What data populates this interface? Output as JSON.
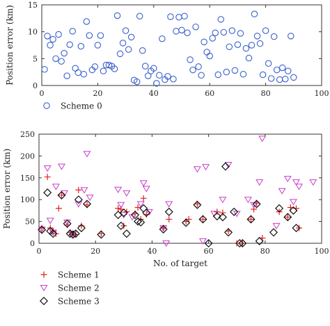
{
  "chart_data": [
    {
      "type": "scatter",
      "ylabel": "Position error (km)",
      "xlabel": "",
      "xlim": [
        0,
        100
      ],
      "ylim": [
        0,
        15
      ],
      "xticks": [
        0,
        20,
        40,
        60,
        80,
        100
      ],
      "yticks": [
        0,
        5,
        10,
        15
      ],
      "grid": false,
      "legend_placement": "bottom-left",
      "series": [
        {
          "name": "Scheme 0",
          "color": "#3a5fcd",
          "marker": "circle",
          "points": [
            [
              1,
              3.0
            ],
            [
              2,
              9.2
            ],
            [
              3,
              7.5
            ],
            [
              4,
              8.6
            ],
            [
              5,
              5.0
            ],
            [
              6,
              9.5
            ],
            [
              7,
              4.5
            ],
            [
              8,
              6.0
            ],
            [
              9,
              1.8
            ],
            [
              10,
              7.6
            ],
            [
              11,
              10.1
            ],
            [
              12,
              3.2
            ],
            [
              13,
              2.4
            ],
            [
              14,
              7.3
            ],
            [
              15,
              2.1
            ],
            [
              16,
              11.9
            ],
            [
              17,
              9.3
            ],
            [
              18,
              2.9
            ],
            [
              19,
              3.5
            ],
            [
              20,
              7.5
            ],
            [
              21,
              9.3
            ],
            [
              22,
              2.7
            ],
            [
              23,
              3.8
            ],
            [
              24,
              3.8
            ],
            [
              25,
              3.6
            ],
            [
              26,
              3.1
            ],
            [
              27,
              13.0
            ],
            [
              28,
              5.9
            ],
            [
              29,
              7.9
            ],
            [
              30,
              10.2
            ],
            [
              31,
              6.7
            ],
            [
              32,
              9.0
            ],
            [
              33,
              1.0
            ],
            [
              34,
              0.7
            ],
            [
              35,
              12.9
            ],
            [
              36,
              6.5
            ],
            [
              37,
              3.6
            ],
            [
              38,
              1.8
            ],
            [
              39,
              2.7
            ],
            [
              40,
              3.2
            ],
            [
              41,
              0.4
            ],
            [
              42,
              1.9
            ],
            [
              43,
              8.7
            ],
            [
              44,
              1.1
            ],
            [
              45,
              1.7
            ],
            [
              46,
              12.8
            ],
            [
              47,
              1.2
            ],
            [
              48,
              10.1
            ],
            [
              49,
              12.7
            ],
            [
              50,
              10.3
            ],
            [
              51,
              12.9
            ],
            [
              52,
              9.8
            ],
            [
              53,
              4.8
            ],
            [
              54,
              2.9
            ],
            [
              55,
              10.9
            ],
            [
              56,
              3.5
            ],
            [
              57,
              1.9
            ],
            [
              58,
              8.1
            ],
            [
              59,
              6.2
            ],
            [
              60,
              5.5
            ],
            [
              61,
              8.8
            ],
            [
              62,
              9.8
            ],
            [
              63,
              2.0
            ],
            [
              64,
              12.3
            ],
            [
              65,
              9.9
            ],
            [
              66,
              2.5
            ],
            [
              67,
              7.2
            ],
            [
              68,
              10.2
            ],
            [
              69,
              2.8
            ],
            [
              70,
              7.6
            ],
            [
              71,
              9.7
            ],
            [
              72,
              2.1
            ],
            [
              73,
              6.9
            ],
            [
              74,
              5.1
            ],
            [
              75,
              7.5
            ],
            [
              76,
              13.3
            ],
            [
              77,
              9.2
            ],
            [
              78,
              7.8
            ],
            [
              79,
              2.0
            ],
            [
              80,
              10.2
            ],
            [
              81,
              4.1
            ],
            [
              82,
              1.3
            ],
            [
              83,
              9.1
            ],
            [
              84,
              2.9
            ],
            [
              85,
              1.1
            ],
            [
              86,
              3.3
            ],
            [
              87,
              1.2
            ],
            [
              88,
              2.7
            ],
            [
              89,
              9.2
            ],
            [
              90,
              1.5
            ]
          ]
        }
      ]
    },
    {
      "type": "scatter",
      "ylabel": "Position error (km)",
      "xlabel": "No. of target",
      "xlim": [
        0,
        100
      ],
      "ylim": [
        0,
        250
      ],
      "xticks": [
        0,
        20,
        40,
        60,
        80,
        100
      ],
      "yticks": [
        0,
        50,
        100,
        150,
        200,
        250
      ],
      "grid": false,
      "legend_placement": "bottom-left",
      "series": [
        {
          "name": "Scheme 1",
          "color": "#e02020",
          "marker": "plus",
          "points": [
            [
              1,
              35
            ],
            [
              3,
              152
            ],
            [
              4,
              35
            ],
            [
              5,
              28
            ],
            [
              6,
              22
            ],
            [
              7,
              80
            ],
            [
              8,
              110
            ],
            [
              10,
              42
            ],
            [
              11,
              25
            ],
            [
              12,
              20
            ],
            [
              13,
              20
            ],
            [
              14,
              122
            ],
            [
              15,
              40
            ],
            [
              17,
              88
            ],
            [
              22,
              22
            ],
            [
              28,
              80
            ],
            [
              29,
              78
            ],
            [
              30,
              40
            ],
            [
              31,
              72
            ],
            [
              34,
              68
            ],
            [
              35,
              82
            ],
            [
              36,
              55
            ],
            [
              37,
              103
            ],
            [
              38,
              66
            ],
            [
              44,
              35
            ],
            [
              46,
              55
            ],
            [
              52,
              50
            ],
            [
              53,
              55
            ],
            [
              56,
              90
            ],
            [
              58,
              55
            ],
            [
              63,
              72
            ],
            [
              65,
              70
            ],
            [
              67,
              28
            ],
            [
              70,
              0
            ],
            [
              72,
              0
            ],
            [
              75,
              55
            ],
            [
              76,
              78
            ],
            [
              77,
              92
            ],
            [
              79,
              12
            ],
            [
              85,
              72
            ],
            [
              88,
              60
            ],
            [
              89,
              82
            ],
            [
              91,
              80
            ],
            [
              92,
              35
            ]
          ]
        },
        {
          "name": "Scheme 2",
          "color": "#c83cc8",
          "marker": "triangle-down",
          "points": [
            [
              1,
              32
            ],
            [
              3,
              172
            ],
            [
              4,
              52
            ],
            [
              5,
              25
            ],
            [
              6,
              130
            ],
            [
              8,
              176
            ],
            [
              9,
              115
            ],
            [
              10,
              48
            ],
            [
              12,
              22
            ],
            [
              14,
              90
            ],
            [
              16,
              122
            ],
            [
              17,
              205
            ],
            [
              18,
              105
            ],
            [
              28,
              123
            ],
            [
              29,
              88
            ],
            [
              30,
              65
            ],
            [
              31,
              115
            ],
            [
              33,
              60
            ],
            [
              36,
              90
            ],
            [
              37,
              138
            ],
            [
              38,
              125
            ],
            [
              39,
              72
            ],
            [
              44,
              35
            ],
            [
              45,
              0
            ],
            [
              46,
              90
            ],
            [
              56,
              170
            ],
            [
              58,
              5
            ],
            [
              59,
              175
            ],
            [
              62,
              68
            ],
            [
              65,
              100
            ],
            [
              67,
              180
            ],
            [
              70,
              68
            ],
            [
              74,
              100
            ],
            [
              76,
              88
            ],
            [
              78,
              140
            ],
            [
              79,
              240
            ],
            [
              84,
              40
            ],
            [
              86,
              120
            ],
            [
              88,
              148
            ],
            [
              90,
              95
            ],
            [
              91,
              140
            ],
            [
              92,
              130
            ],
            [
              97,
              140
            ]
          ]
        },
        {
          "name": "Scheme 3",
          "color": "#111111",
          "marker": "diamond",
          "points": [
            [
              1,
              31
            ],
            [
              3,
              116
            ],
            [
              4,
              28
            ],
            [
              5,
              22
            ],
            [
              8,
              110
            ],
            [
              10,
              45
            ],
            [
              11,
              22
            ],
            [
              12,
              20
            ],
            [
              13,
              22
            ],
            [
              14,
              100
            ],
            [
              15,
              35
            ],
            [
              17,
              90
            ],
            [
              22,
              20
            ],
            [
              28,
              65
            ],
            [
              29,
              40
            ],
            [
              30,
              70
            ],
            [
              31,
              22
            ],
            [
              34,
              65
            ],
            [
              35,
              50
            ],
            [
              36,
              48
            ],
            [
              37,
              80
            ],
            [
              38,
              70
            ],
            [
              44,
              32
            ],
            [
              46,
              72
            ],
            [
              52,
              47
            ],
            [
              56,
              88
            ],
            [
              58,
              55
            ],
            [
              60,
              0
            ],
            [
              63,
              62
            ],
            [
              65,
              60
            ],
            [
              66,
              176
            ],
            [
              67,
              25
            ],
            [
              69,
              72
            ],
            [
              71,
              0
            ],
            [
              72,
              0
            ],
            [
              75,
              55
            ],
            [
              77,
              90
            ],
            [
              78,
              5
            ],
            [
              83,
              25
            ],
            [
              85,
              80
            ],
            [
              88,
              60
            ],
            [
              90,
              75
            ],
            [
              91,
              35
            ]
          ]
        }
      ]
    }
  ]
}
